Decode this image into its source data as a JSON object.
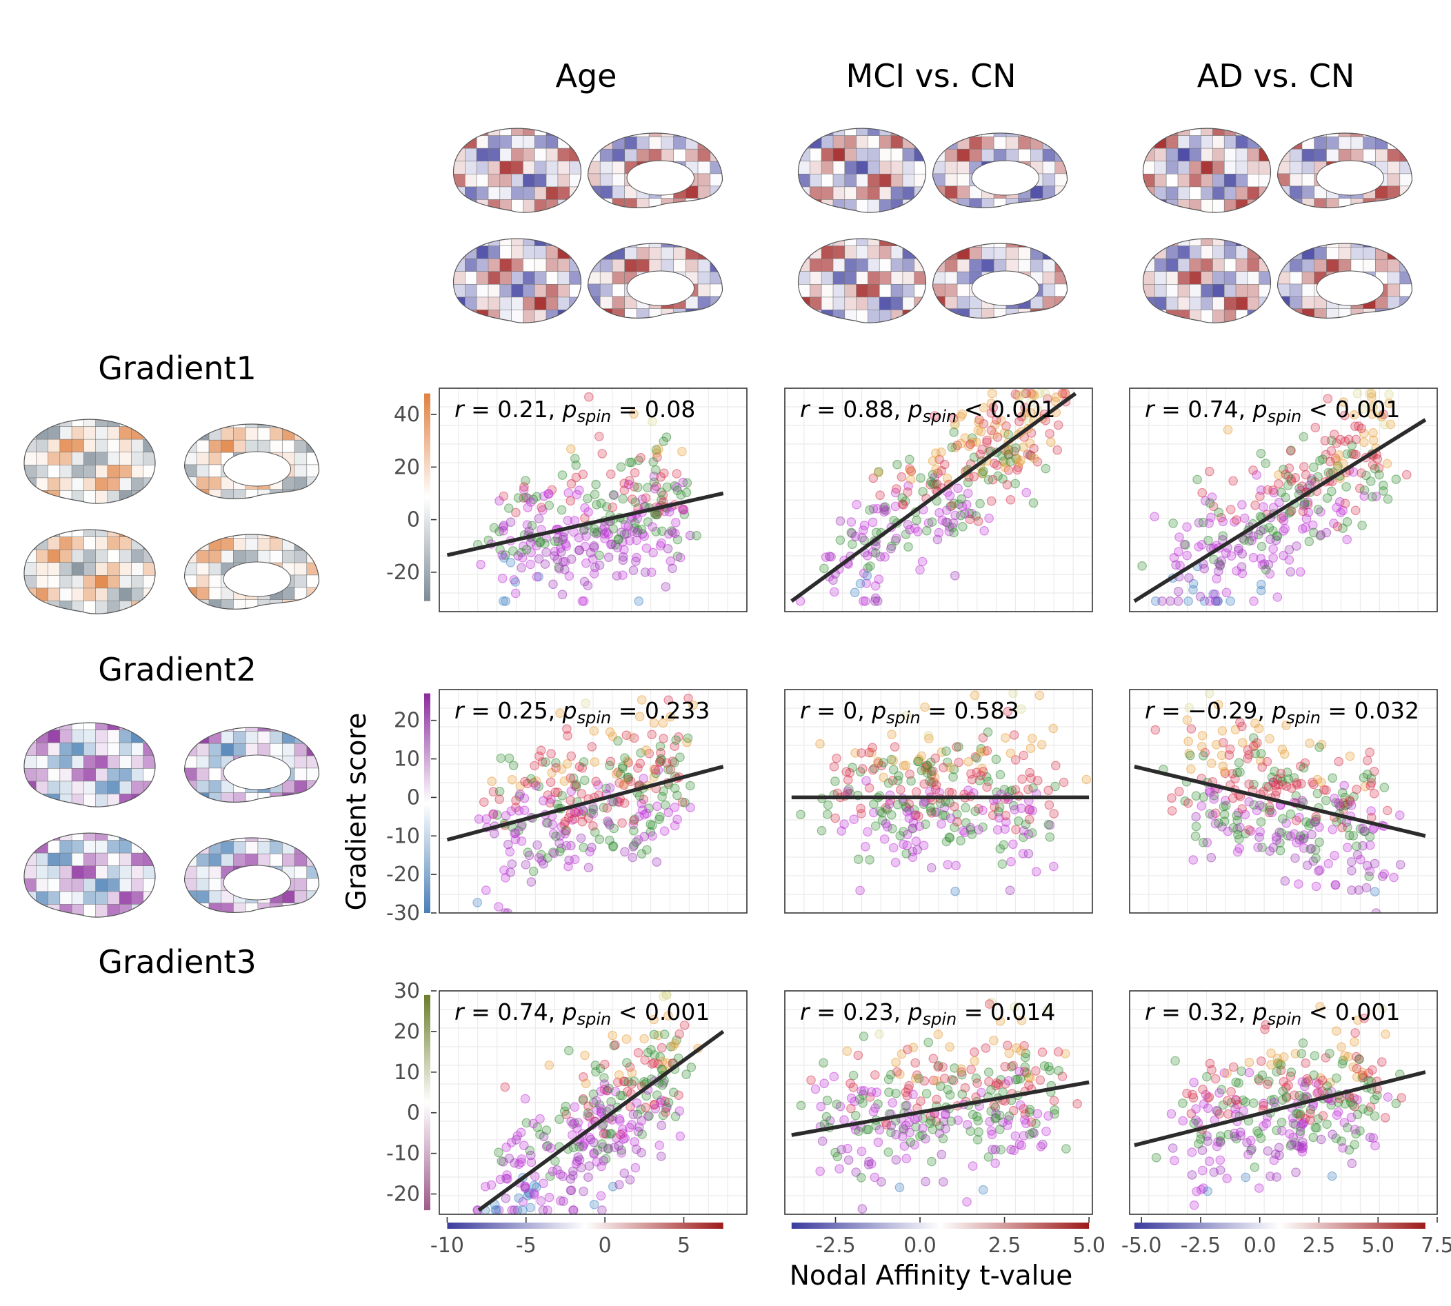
{
  "columns": [
    "Age",
    "MCI vs. CN",
    "AD vs. CN"
  ],
  "rows": [
    "Gradient1",
    "Gradient2",
    "Gradient3"
  ],
  "colors": {
    "gradient1": [
      "#7d8b96",
      "#ffffff",
      "#e0803f"
    ],
    "gradient2": [
      "#4a7fb5",
      "#ffffff",
      "#8a2a9c"
    ],
    "gradient3": [
      "#9c5a8a",
      "#ffffff",
      "#6b7d2a"
    ],
    "tvalue": [
      "#3b3b9e",
      "#ffffff",
      "#9e1a1a"
    ],
    "points": [
      "#3a7fc1",
      "#9b30b8",
      "#c030d8",
      "#2e8b2e",
      "#d8304a",
      "#e89a30",
      "#d8d890"
    ],
    "fit": "#2b2b2b",
    "grid": "#ebebeb",
    "frame": "#333333"
  },
  "chart_data": {
    "type": "scatter",
    "ylabel": "Gradient score",
    "xlabel": "Nodal Affinity t-value",
    "x_ticks": [
      [
        -10,
        -5,
        0,
        5
      ],
      [
        -2.5,
        0.0,
        2.5,
        5.0
      ],
      [
        -5.0,
        -2.5,
        0.0,
        2.5,
        5.0,
        7.5
      ]
    ],
    "x_tick_labels": [
      [
        "-10",
        "-5",
        "0",
        "5"
      ],
      [
        "-2.5",
        "0.0",
        "2.5",
        "5.0"
      ],
      [
        "-5.0",
        "-2.5",
        "0.0",
        "2.5",
        "5.0",
        "7.5"
      ]
    ],
    "xlim": [
      [
        -10.5,
        9
      ],
      [
        -4,
        5.1
      ],
      [
        -5.5,
        7.5
      ]
    ],
    "x_color_range": [
      [
        -10,
        7.5
      ],
      [
        -3.8,
        5.0
      ],
      [
        -5.3,
        7.0
      ]
    ],
    "y_ticks": [
      [
        -20,
        0,
        20,
        40
      ],
      [
        -30,
        -20,
        -10,
        0,
        10,
        20
      ],
      [
        -20,
        -10,
        0,
        10,
        20,
        30
      ]
    ],
    "y_tick_labels": [
      [
        "-20",
        "0",
        "20",
        "40"
      ],
      [
        "-30",
        "-20",
        "-10",
        "0",
        "10",
        "20"
      ],
      [
        "-20",
        "-10",
        "0",
        "10",
        "20",
        "30"
      ]
    ],
    "ylim": [
      [
        -35,
        50
      ],
      [
        -30,
        28
      ],
      [
        -25,
        30
      ]
    ],
    "y_color_range": [
      [
        -31,
        48
      ],
      [
        -30,
        27
      ],
      [
        -24,
        29
      ]
    ],
    "fits": [
      [
        {
          "x": [
            -10,
            7.5
          ],
          "y": [
            -13.5,
            10
          ]
        },
        {
          "x": [
            -3.8,
            4.6
          ],
          "y": [
            -31,
            48
          ]
        },
        {
          "x": [
            -5.3,
            7.0
          ],
          "y": [
            -31,
            38
          ]
        }
      ],
      [
        {
          "x": [
            -10,
            7.5
          ],
          "y": [
            -11,
            8
          ]
        },
        {
          "x": [
            -3.8,
            5.0
          ],
          "y": [
            0,
            0
          ]
        },
        {
          "x": [
            -5.3,
            7.0
          ],
          "y": [
            8,
            -10
          ]
        }
      ],
      [
        {
          "x": [
            -8,
            7.5
          ],
          "y": [
            -24,
            20
          ]
        },
        {
          "x": [
            -3.8,
            5.0
          ],
          "y": [
            -5.5,
            7.5
          ]
        },
        {
          "x": [
            -5.3,
            7.0
          ],
          "y": [
            -8,
            10
          ]
        }
      ]
    ],
    "annotations": [
      [
        {
          "r": "r",
          "eq1": " = 0.21, ",
          "p": "p",
          "sub": "spin",
          "eq2": " = 0.08"
        },
        {
          "r": "r",
          "eq1": " = 0.88, ",
          "p": "p",
          "sub": "spin",
          "eq2": " < 0.001"
        },
        {
          "r": "r",
          "eq1": " = 0.74, ",
          "p": "p",
          "sub": "spin",
          "eq2": " < 0.001"
        }
      ],
      [
        {
          "r": "r",
          "eq1": " = 0.25, ",
          "p": "p",
          "sub": "spin",
          "eq2": " = 0.233"
        },
        {
          "r": "r",
          "eq1": " = 0, ",
          "p": "p",
          "sub": "spin",
          "eq2": " = 0.583"
        },
        {
          "r": "r",
          "eq1": " = −0.29, ",
          "p": "p",
          "sub": "spin",
          "eq2": " = 0.032"
        }
      ],
      [
        {
          "r": "r",
          "eq1": " = 0.74, ",
          "p": "p",
          "sub": "spin",
          "eq2": " < 0.001"
        },
        {
          "r": "r",
          "eq1": " = 0.23, ",
          "p": "p",
          "sub": "spin",
          "eq2": " = 0.014"
        },
        {
          "r": "r",
          "eq1": " = 0.32, ",
          "p": "p",
          "sub": "spin",
          "eq2": " < 0.001"
        }
      ]
    ],
    "grid": true,
    "points_per_panel": 300
  }
}
